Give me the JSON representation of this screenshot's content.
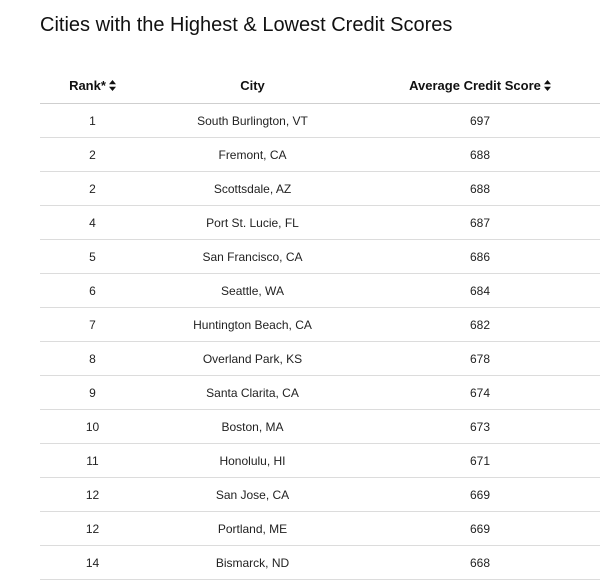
{
  "page": {
    "title": "Cities with the Highest & Lowest Credit Scores"
  },
  "table": {
    "headers": {
      "rank": "Rank*",
      "city": "City",
      "score": "Average Credit Score"
    },
    "sort_icon": "sort-updown-icon",
    "rows": [
      {
        "rank": "1",
        "city": "South Burlington, VT",
        "score": "697"
      },
      {
        "rank": "2",
        "city": "Fremont, CA",
        "score": "688"
      },
      {
        "rank": "2",
        "city": "Scottsdale, AZ",
        "score": "688"
      },
      {
        "rank": "4",
        "city": "Port St. Lucie, FL",
        "score": "687"
      },
      {
        "rank": "5",
        "city": "San Francisco, CA",
        "score": "686"
      },
      {
        "rank": "6",
        "city": "Seattle, WA",
        "score": "684"
      },
      {
        "rank": "7",
        "city": "Huntington Beach, CA",
        "score": "682"
      },
      {
        "rank": "8",
        "city": "Overland Park, KS",
        "score": "678"
      },
      {
        "rank": "9",
        "city": "Santa Clarita, CA",
        "score": "674"
      },
      {
        "rank": "10",
        "city": "Boston, MA",
        "score": "673"
      },
      {
        "rank": "11",
        "city": "Honolulu, HI",
        "score": "671"
      },
      {
        "rank": "12",
        "city": "San Jose, CA",
        "score": "669"
      },
      {
        "rank": "12",
        "city": "Portland, ME",
        "score": "669"
      },
      {
        "rank": "14",
        "city": "Bismarck, ND",
        "score": "668"
      }
    ]
  }
}
